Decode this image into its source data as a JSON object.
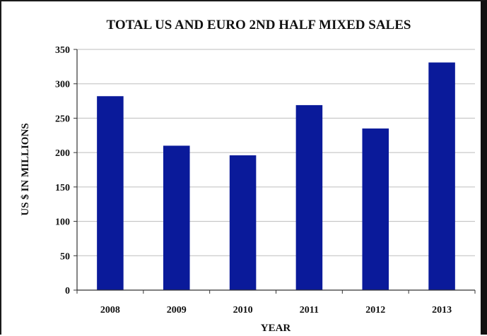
{
  "chart_data": {
    "type": "bar",
    "title": "TOTAL US AND EURO 2ND HALF MIXED SALES",
    "xlabel": "YEAR",
    "ylabel": "US $ IN MILLIONS",
    "categories": [
      "2008",
      "2009",
      "2010",
      "2011",
      "2012",
      "2013"
    ],
    "values": [
      282,
      210,
      196,
      269,
      235,
      331
    ],
    "ylim": [
      0,
      350
    ],
    "yticks": [
      0,
      50,
      100,
      150,
      200,
      250,
      300,
      350
    ],
    "grid": true,
    "legend": "none",
    "bar_color": "#0a1a9a",
    "grid_color": "#bdbdbd"
  }
}
